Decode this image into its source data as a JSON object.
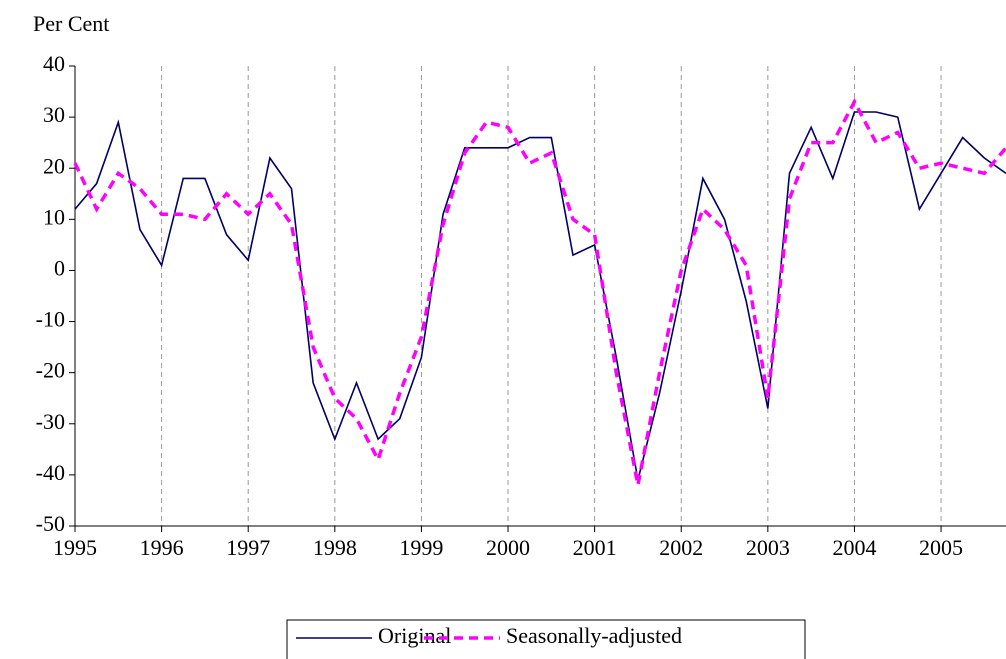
{
  "chart_data": {
    "type": "line",
    "y_label": "Per Cent",
    "x": [
      1995,
      1995.25,
      1995.5,
      1995.75,
      1996,
      1996.25,
      1996.5,
      1996.75,
      1997,
      1997.25,
      1997.5,
      1997.75,
      1998,
      1998.25,
      1998.5,
      1998.75,
      1999,
      1999.25,
      1999.5,
      1999.75,
      2000,
      2000.25,
      2000.5,
      2000.75,
      2001,
      2001.25,
      2001.5,
      2001.75,
      2002,
      2002.25,
      2002.5,
      2002.75,
      2003,
      2003.25,
      2003.5,
      2003.75,
      2004,
      2004.25,
      2004.5,
      2004.75,
      2005,
      2005.25,
      2005.5,
      2005.75
    ],
    "series": [
      {
        "name": "Original",
        "color": "#000066",
        "dash": false,
        "values": [
          12,
          17,
          29,
          8,
          1,
          18,
          18,
          7,
          2,
          22,
          16,
          -22,
          -33,
          -22,
          -33,
          -29,
          -17,
          11,
          24,
          24,
          24,
          26,
          26,
          3,
          5,
          -17,
          -41,
          -24,
          -4,
          18,
          10,
          -6,
          -27,
          19,
          28,
          18,
          31,
          31,
          30,
          12,
          19,
          26,
          22,
          19
        ]
      },
      {
        "name": "Seasonally-adjusted",
        "color": "#ff00ff",
        "dash": true,
        "values": [
          21,
          12,
          19,
          16,
          11,
          11,
          10,
          15,
          11,
          15,
          9,
          -15,
          -25,
          -29,
          -37,
          -24,
          -13,
          9,
          23,
          29,
          28,
          21,
          23,
          10,
          7,
          -20,
          -42,
          -20,
          0,
          12,
          8,
          1,
          -25,
          14,
          25,
          25,
          33,
          25,
          27,
          20,
          21,
          20,
          19,
          24
        ]
      }
    ],
    "xlim": [
      1995,
      2005.75
    ],
    "xticks": [
      1995,
      1996,
      1997,
      1998,
      1999,
      2000,
      2001,
      2002,
      2003,
      2004,
      2005
    ],
    "ylim": [
      -50,
      40
    ],
    "yticks": [
      -50,
      -40,
      -30,
      -20,
      -10,
      0,
      10,
      20,
      30,
      40
    ],
    "grid": true,
    "legend": "bottom"
  }
}
